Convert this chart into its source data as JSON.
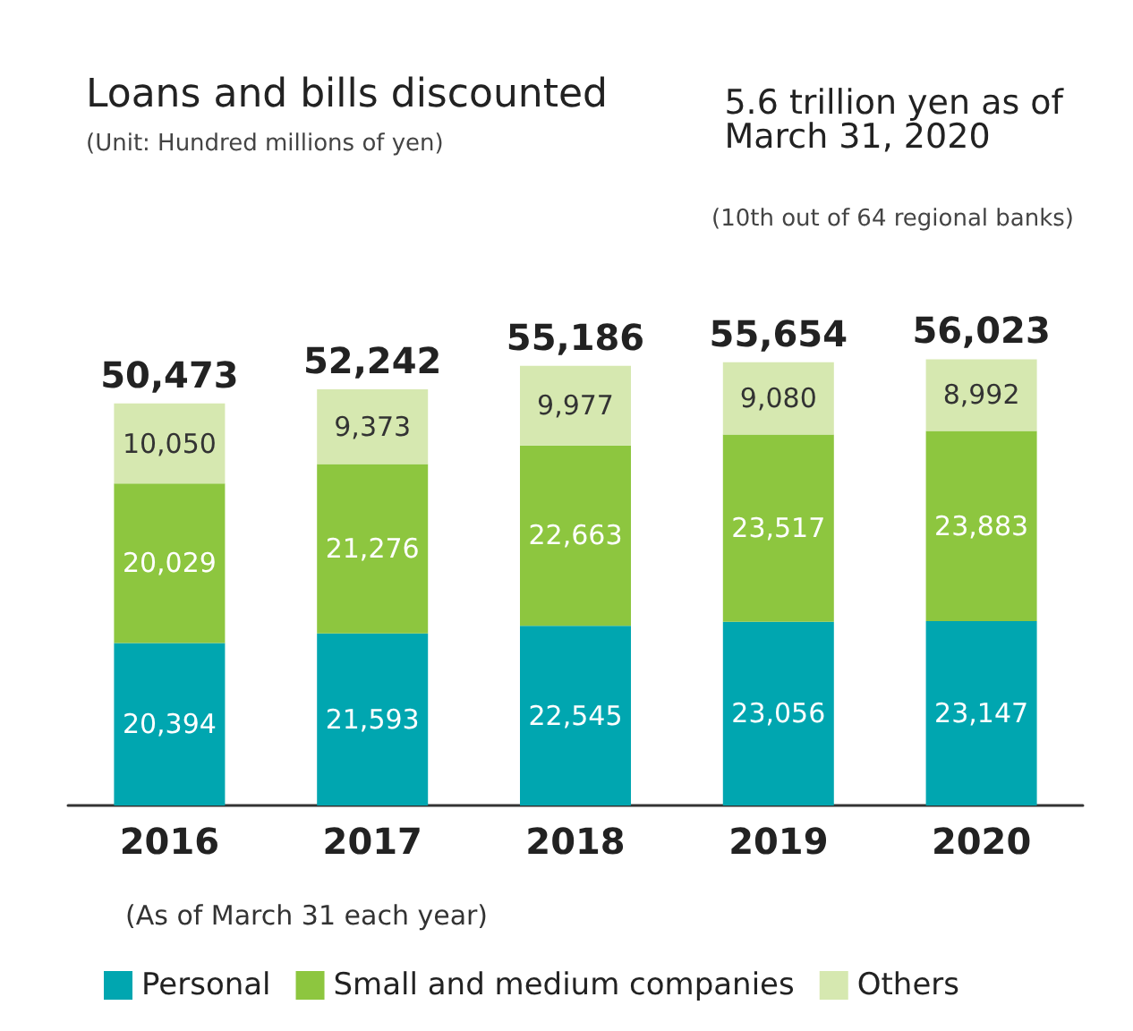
{
  "chart_data": {
    "type": "bar",
    "title": "Loans and bills discounted",
    "subtitle": "(Unit: Hundred millions of yen)",
    "annotations": [
      "5.6 trillion yen as of March 31, 2020",
      "(10th out of 64 regional banks)",
      "(As of March 31 each year)"
    ],
    "categories": [
      "2016",
      "2017",
      "2018",
      "2019",
      "2020"
    ],
    "series": [
      {
        "name": "Personal",
        "color": "#00a6b0",
        "values": [
          20394,
          21593,
          22545,
          23056,
          23147
        ],
        "value_labels": [
          "20,394",
          "21,593",
          "22,545",
          "23,056",
          "23,147"
        ]
      },
      {
        "name": "Small and medium companies",
        "color": "#8dc63f",
        "values": [
          20029,
          21276,
          22663,
          23517,
          23883
        ],
        "value_labels": [
          "20,029",
          "21,276",
          "22,663",
          "23,517",
          "23,883"
        ]
      },
      {
        "name": "Others",
        "color": "#d6e8b0",
        "values": [
          10050,
          9373,
          9977,
          9080,
          8992
        ],
        "value_labels": [
          "10,050",
          "9,373",
          "9,977",
          "9,080",
          "8,992"
        ]
      }
    ],
    "stacked": true,
    "totals": [
      "50,473",
      "52,242",
      "55,186",
      "55,654",
      "56,023"
    ],
    "legend": "bottom",
    "tick_labels": "x"
  }
}
